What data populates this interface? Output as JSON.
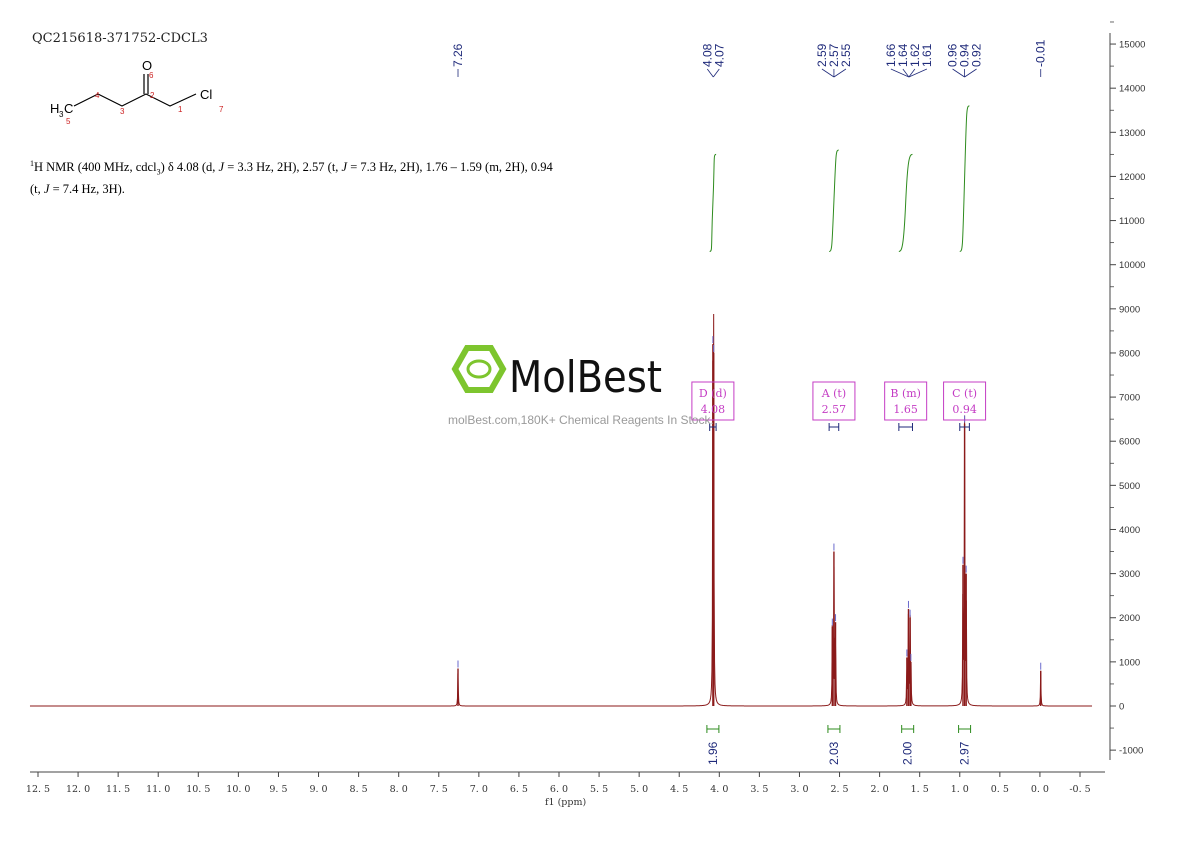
{
  "header": {
    "sample_id": "QC215618-371752-CDCL3"
  },
  "structure": {
    "atom_o": "O",
    "atom_cl": "Cl",
    "atom_h3c": "H",
    "atom_h3c_sub": "3",
    "atom_h3c_c": "C",
    "locants": [
      "1",
      "2",
      "3",
      "4",
      "5",
      "6",
      "7"
    ]
  },
  "description": {
    "iso": "1",
    "p1": "H NMR (400 MHz, cdcl",
    "sub3": "3",
    "p2": ") δ 4.08 (d, ",
    "j": "J",
    "p3": " = 3.3 Hz, 2H), 2.57 (t, ",
    "p4": " = 7.3 Hz, 2H), 1.76 – 1.59 (m, 2H), 0.94",
    "p5": "(t, ",
    "p6": " = 7.4 Hz, 3H)."
  },
  "watermark": {
    "brand": "MolBest",
    "tagline": "molBest.com,180K+ Chemical Reagents In Stock."
  },
  "colors": {
    "spectrum": "#8b1a1a",
    "integral": "#2e8b1e",
    "peak_label": "#1f2a7a",
    "multiplet_box": "#c43cc4",
    "axis": "#444444",
    "logo": "#7dc52e"
  },
  "chart_data": {
    "type": "line",
    "title": "",
    "xlabel": "f1 (ppm)",
    "ylabel": "",
    "xlim": [
      12.5,
      -0.6
    ],
    "ylim": [
      -1500,
      15200
    ],
    "x_ticks": [
      "12.5",
      "12.0",
      "11.5",
      "11.0",
      "10.5",
      "10.0",
      "9.5",
      "9.0",
      "8.5",
      "8.0",
      "7.5",
      "7.0",
      "6.5",
      "6.0",
      "5.5",
      "5.0",
      "4.5",
      "4.0",
      "3.5",
      "3.0",
      "2.5",
      "2.0",
      "1.5",
      "1.0",
      "0.5",
      "0.0",
      "-0.5"
    ],
    "y_ticks": [
      "15000",
      "14000",
      "13000",
      "12000",
      "11000",
      "10000",
      "9000",
      "8000",
      "7000",
      "6000",
      "5000",
      "4000",
      "3000",
      "2000",
      "1000",
      "0",
      "-1000"
    ],
    "peaks": [
      {
        "ppm": 7.26,
        "height": 850
      },
      {
        "ppm": 4.08,
        "height": 8200
      },
      {
        "ppm": 4.07,
        "height": 8000
      },
      {
        "ppm": 2.59,
        "height": 1800
      },
      {
        "ppm": 2.57,
        "height": 3500
      },
      {
        "ppm": 2.55,
        "height": 1900
      },
      {
        "ppm": 1.66,
        "height": 1100
      },
      {
        "ppm": 1.64,
        "height": 2200
      },
      {
        "ppm": 1.62,
        "height": 2000
      },
      {
        "ppm": 1.61,
        "height": 1000
      },
      {
        "ppm": 0.96,
        "height": 3200
      },
      {
        "ppm": 0.94,
        "height": 6400
      },
      {
        "ppm": 0.92,
        "height": 3000
      },
      {
        "ppm": -0.01,
        "height": 800
      }
    ],
    "peak_groups": [
      {
        "x": 7.26,
        "labels": [
          "7.26"
        ]
      },
      {
        "x": 4.075,
        "labels": [
          "4.08",
          "4.07"
        ]
      },
      {
        "x": 2.57,
        "labels": [
          "2.59",
          "2.57",
          "2.55"
        ]
      },
      {
        "x": 1.635,
        "labels": [
          "1.66",
          "1.64",
          "1.62",
          "1.61"
        ]
      },
      {
        "x": 0.94,
        "labels": [
          "0.96",
          "0.94",
          "0.92"
        ]
      },
      {
        "x": -0.01,
        "labels": [
          "-0.01"
        ]
      }
    ],
    "integrals": [
      {
        "center": 4.08,
        "from": 4.12,
        "to": 4.04,
        "y_start": 10300,
        "y_end": 12500,
        "label": "1.96"
      },
      {
        "center": 2.57,
        "from": 2.63,
        "to": 2.51,
        "y_start": 10300,
        "y_end": 12600,
        "label": "2.03"
      },
      {
        "center": 1.65,
        "from": 1.76,
        "to": 1.59,
        "y_start": 10300,
        "y_end": 12500,
        "label": "2.00"
      },
      {
        "center": 0.94,
        "from": 1.0,
        "to": 0.88,
        "y_start": 10300,
        "y_end": 13600,
        "label": "2.97"
      }
    ],
    "multiplets": [
      {
        "name": "D",
        "type": "(d)",
        "shift": "4.08",
        "range": [
          4.12,
          4.04
        ]
      },
      {
        "name": "A",
        "type": "(t)",
        "shift": "2.57",
        "range": [
          2.63,
          2.51
        ]
      },
      {
        "name": "B",
        "type": "(m)",
        "shift": "1.65",
        "range": [
          1.76,
          1.59
        ]
      },
      {
        "name": "C",
        "type": "(t)",
        "shift": "0.94",
        "range": [
          1.0,
          0.88
        ]
      }
    ]
  }
}
